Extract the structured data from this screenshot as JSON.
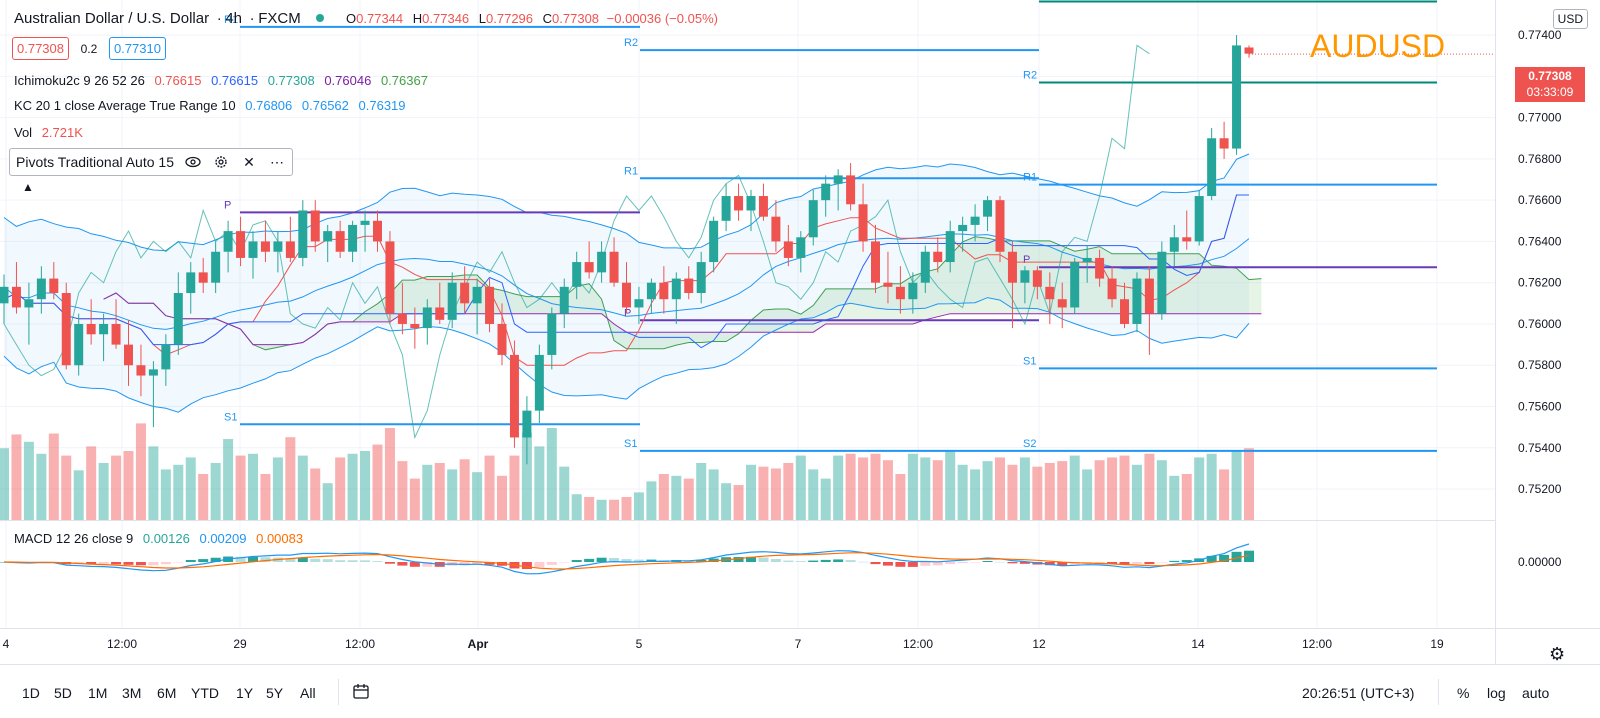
{
  "header": {
    "symbol_title": "Australian Dollar / U.S. Dollar",
    "interval": "4h",
    "exchange": "FXCM",
    "o_label": "O",
    "o_val": "0.77344",
    "h_label": "H",
    "h_val": "0.77346",
    "l_label": "L",
    "l_val": "0.77296",
    "c_label": "C",
    "c_val": "0.77308",
    "change": "−0.00036 (−0.05%)",
    "sell_price": "0.77308",
    "spread": "0.2",
    "buy_price": "0.77310"
  },
  "indicators": {
    "ichimoku_label": "Ichimoku2c 9 26 52 26",
    "ichimoku_values": [
      "0.76615",
      "0.76615",
      "0.77308",
      "0.76046",
      "0.76367"
    ],
    "kc_label": "KC 20 1 close Average True Range 10",
    "kc_values": [
      "0.76806",
      "0.76562",
      "0.76319"
    ],
    "vol_label": "Vol",
    "vol_value": "2.721K",
    "pivots_label": "Pivots Traditional Auto 15",
    "macd_label": "MACD 12 26 close 9",
    "macd_values": [
      "0.00126",
      "0.00209",
      "0.00083"
    ]
  },
  "watermark": "AUDUSD",
  "price_axis": {
    "currency": "USD",
    "last_price": "0.77308",
    "countdown": "03:33:09"
  },
  "timeframes": [
    "1D",
    "5D",
    "1M",
    "3M",
    "6M",
    "YTD",
    "1Y",
    "5Y",
    "All"
  ],
  "footer": {
    "clock": "20:26:51 (UTC+3)",
    "percent": "%",
    "log": "log",
    "auto": "auto"
  },
  "colors": {
    "up": "#26a69a",
    "down": "#ef5350",
    "pivot_line": "#2196f3",
    "pivot_p": "#673ab7",
    "watermark": "#ff9800"
  },
  "chart_data": {
    "type": "candlestick",
    "title": "Australian Dollar / U.S. Dollar, 4h, FXCM",
    "price_ticks": [
      "0.77400",
      "0.77200",
      "0.77000",
      "0.76800",
      "0.76600",
      "0.76400",
      "0.76200",
      "0.76000",
      "0.75800",
      "0.75600",
      "0.75400",
      "0.75200"
    ],
    "time_ticks": [
      {
        "label": "4",
        "x": 6
      },
      {
        "label": "12:00",
        "x": 122
      },
      {
        "label": "29",
        "x": 240
      },
      {
        "label": "12:00",
        "x": 360
      },
      {
        "label": "Apr",
        "x": 478
      },
      {
        "label": "5",
        "x": 639
      },
      {
        "label": "7",
        "x": 798
      },
      {
        "label": "12:00",
        "x": 918
      },
      {
        "label": "12",
        "x": 1039
      },
      {
        "label": "14",
        "x": 1198
      },
      {
        "label": "12:00",
        "x": 1317
      },
      {
        "label": "19",
        "x": 1437
      }
    ],
    "ylim": [
      0.7505,
      0.7757
    ],
    "candles": [
      [
        0.761,
        0.7624,
        0.76,
        0.7618
      ],
      [
        0.7618,
        0.763,
        0.7605,
        0.7608
      ],
      [
        0.7608,
        0.762,
        0.759,
        0.7612
      ],
      [
        0.7612,
        0.7628,
        0.7605,
        0.7622
      ],
      [
        0.7622,
        0.763,
        0.7612,
        0.7615
      ],
      [
        0.7615,
        0.762,
        0.7578,
        0.758
      ],
      [
        0.758,
        0.7605,
        0.7575,
        0.76
      ],
      [
        0.76,
        0.7612,
        0.759,
        0.7595
      ],
      [
        0.7595,
        0.7605,
        0.7582,
        0.76
      ],
      [
        0.76,
        0.7612,
        0.7588,
        0.759
      ],
      [
        0.759,
        0.7602,
        0.757,
        0.758
      ],
      [
        0.758,
        0.759,
        0.7565,
        0.7575
      ],
      [
        0.7575,
        0.7582,
        0.755,
        0.7578
      ],
      [
        0.7578,
        0.7595,
        0.757,
        0.759
      ],
      [
        0.759,
        0.7625,
        0.7585,
        0.7615
      ],
      [
        0.7615,
        0.763,
        0.7605,
        0.7625
      ],
      [
        0.7625,
        0.7632,
        0.7615,
        0.762
      ],
      [
        0.762,
        0.764,
        0.7615,
        0.7635
      ],
      [
        0.7635,
        0.765,
        0.7625,
        0.7645
      ],
      [
        0.7645,
        0.7652,
        0.7628,
        0.7632
      ],
      [
        0.7632,
        0.7645,
        0.7622,
        0.764
      ],
      [
        0.764,
        0.765,
        0.763,
        0.7635
      ],
      [
        0.7635,
        0.7645,
        0.7625,
        0.764
      ],
      [
        0.764,
        0.7652,
        0.763,
        0.7632
      ],
      [
        0.7632,
        0.766,
        0.7628,
        0.7655
      ],
      [
        0.7655,
        0.766,
        0.7635,
        0.764
      ],
      [
        0.764,
        0.7648,
        0.763,
        0.7645
      ],
      [
        0.7645,
        0.765,
        0.7632,
        0.7635
      ],
      [
        0.7635,
        0.765,
        0.763,
        0.7648
      ],
      [
        0.7648,
        0.7655,
        0.7635,
        0.765
      ],
      [
        0.765,
        0.7655,
        0.7635,
        0.764
      ],
      [
        0.764,
        0.7645,
        0.76,
        0.7605
      ],
      [
        0.7605,
        0.762,
        0.7595,
        0.76
      ],
      [
        0.76,
        0.7608,
        0.7588,
        0.7598
      ],
      [
        0.7598,
        0.7612,
        0.759,
        0.7608
      ],
      [
        0.7608,
        0.762,
        0.76,
        0.7602
      ],
      [
        0.7602,
        0.7625,
        0.7598,
        0.762
      ],
      [
        0.762,
        0.7628,
        0.7605,
        0.761
      ],
      [
        0.761,
        0.7622,
        0.7595,
        0.7618
      ],
      [
        0.7618,
        0.7622,
        0.7596,
        0.76
      ],
      [
        0.76,
        0.761,
        0.758,
        0.7585
      ],
      [
        0.7585,
        0.7592,
        0.754,
        0.7545
      ],
      [
        0.7545,
        0.7565,
        0.7532,
        0.7558
      ],
      [
        0.7558,
        0.759,
        0.7552,
        0.7585
      ],
      [
        0.7585,
        0.7608,
        0.7578,
        0.7605
      ],
      [
        0.7605,
        0.7622,
        0.7598,
        0.7618
      ],
      [
        0.7618,
        0.7635,
        0.7612,
        0.763
      ],
      [
        0.763,
        0.764,
        0.7622,
        0.7625
      ],
      [
        0.7625,
        0.764,
        0.762,
        0.7635
      ],
      [
        0.7635,
        0.7642,
        0.7618,
        0.762
      ],
      [
        0.762,
        0.763,
        0.7605,
        0.7608
      ],
      [
        0.7608,
        0.7618,
        0.76,
        0.7612
      ],
      [
        0.7612,
        0.7622,
        0.7605,
        0.762
      ],
      [
        0.762,
        0.7628,
        0.7605,
        0.7612
      ],
      [
        0.7612,
        0.7625,
        0.76,
        0.7622
      ],
      [
        0.7622,
        0.7628,
        0.7612,
        0.7615
      ],
      [
        0.7615,
        0.7635,
        0.761,
        0.763
      ],
      [
        0.763,
        0.7652,
        0.7625,
        0.765
      ],
      [
        0.765,
        0.7668,
        0.7645,
        0.7662
      ],
      [
        0.7662,
        0.7668,
        0.765,
        0.7655
      ],
      [
        0.7655,
        0.7665,
        0.7645,
        0.7662
      ],
      [
        0.7662,
        0.7668,
        0.765,
        0.7652
      ],
      [
        0.7652,
        0.766,
        0.7635,
        0.764
      ],
      [
        0.764,
        0.7648,
        0.7628,
        0.7632
      ],
      [
        0.7632,
        0.7645,
        0.7625,
        0.7642
      ],
      [
        0.7642,
        0.7665,
        0.7638,
        0.766
      ],
      [
        0.766,
        0.7672,
        0.7652,
        0.7668
      ],
      [
        0.7668,
        0.7675,
        0.7655,
        0.7672
      ],
      [
        0.7672,
        0.7678,
        0.7655,
        0.7658
      ],
      [
        0.7658,
        0.7668,
        0.7635,
        0.764
      ],
      [
        0.764,
        0.7648,
        0.7615,
        0.762
      ],
      [
        0.762,
        0.7635,
        0.761,
        0.7618
      ],
      [
        0.7618,
        0.7628,
        0.7605,
        0.7612
      ],
      [
        0.7612,
        0.7625,
        0.7605,
        0.762
      ],
      [
        0.762,
        0.7638,
        0.7615,
        0.7635
      ],
      [
        0.7635,
        0.7642,
        0.7625,
        0.763
      ],
      [
        0.763,
        0.765,
        0.7625,
        0.7645
      ],
      [
        0.7645,
        0.7652,
        0.7635,
        0.7648
      ],
      [
        0.7648,
        0.7658,
        0.764,
        0.7652
      ],
      [
        0.7652,
        0.7662,
        0.7645,
        0.766
      ],
      [
        0.766,
        0.7662,
        0.763,
        0.7635
      ],
      [
        0.7635,
        0.764,
        0.7598,
        0.762
      ],
      [
        0.762,
        0.7628,
        0.761,
        0.7626
      ],
      [
        0.7626,
        0.7628,
        0.7612,
        0.7618
      ],
      [
        0.7618,
        0.7625,
        0.76,
        0.7612
      ],
      [
        0.7612,
        0.762,
        0.7598,
        0.7608
      ],
      [
        0.7608,
        0.7632,
        0.7605,
        0.763
      ],
      [
        0.763,
        0.7638,
        0.762,
        0.7632
      ],
      [
        0.7632,
        0.7636,
        0.7618,
        0.7622
      ],
      [
        0.7622,
        0.7628,
        0.7608,
        0.7612
      ],
      [
        0.7612,
        0.762,
        0.7598,
        0.76
      ],
      [
        0.76,
        0.7625,
        0.7596,
        0.7622
      ],
      [
        0.7622,
        0.7628,
        0.7585,
        0.7605
      ],
      [
        0.7605,
        0.764,
        0.7602,
        0.7635
      ],
      [
        0.7635,
        0.7648,
        0.7628,
        0.7642
      ],
      [
        0.7642,
        0.7655,
        0.7636,
        0.764
      ],
      [
        0.764,
        0.7665,
        0.7638,
        0.7662
      ],
      [
        0.7662,
        0.7695,
        0.766,
        0.769
      ],
      [
        0.769,
        0.7698,
        0.768,
        0.7685
      ],
      [
        0.7685,
        0.774,
        0.7682,
        0.7735
      ],
      [
        0.7734,
        0.7735,
        0.7729,
        0.7731
      ]
    ],
    "volumes": [
      0.78,
      0.93,
      0.85,
      0.72,
      0.94,
      0.7,
      0.54,
      0.8,
      0.62,
      0.7,
      0.75,
      1.05,
      0.8,
      0.55,
      0.6,
      0.68,
      0.5,
      0.62,
      0.88,
      0.7,
      0.72,
      0.5,
      0.68,
      0.9,
      0.7,
      0.56,
      0.4,
      0.68,
      0.72,
      0.75,
      0.82,
      1.0,
      0.64,
      0.45,
      0.6,
      0.62,
      0.55,
      0.66,
      0.52,
      0.7,
      0.48,
      0.7,
      0.95,
      0.8,
      1.0,
      0.58,
      0.28,
      0.25,
      0.22,
      0.22,
      0.25,
      0.3,
      0.42,
      0.5,
      0.48,
      0.45,
      0.62,
      0.55,
      0.4,
      0.38,
      0.6,
      0.58,
      0.56,
      0.62,
      0.7,
      0.55,
      0.45,
      0.7,
      0.72,
      0.68,
      0.72,
      0.65,
      0.5,
      0.72,
      0.68,
      0.65,
      0.75,
      0.6,
      0.55,
      0.64,
      0.68,
      0.6,
      0.68,
      0.58,
      0.62,
      0.64,
      0.7,
      0.55,
      0.65,
      0.68,
      0.7,
      0.6,
      0.72,
      0.65,
      0.48,
      0.5,
      0.68,
      0.72,
      0.55,
      0.75,
      0.78,
      0.08
    ],
    "pivots": [
      {
        "label": "R1",
        "price": 0.7744,
        "x0": 240,
        "x1": 640
      },
      {
        "label": "S1",
        "price": 0.75514,
        "x0": 240,
        "x1": 640
      },
      {
        "label": "P",
        "price": 0.76541,
        "x0": 240,
        "x1": 640
      },
      {
        "label": "R2",
        "price": 0.77327,
        "x0": 640,
        "x1": 1039
      },
      {
        "label": "R1",
        "price": 0.76706,
        "x0": 640,
        "x1": 1039
      },
      {
        "label": "P",
        "price": 0.76018,
        "x0": 640,
        "x1": 1039
      },
      {
        "label": "S1",
        "price": 0.75385,
        "x0": 640,
        "x1": 1039
      },
      {
        "label": "R3",
        "price": 0.77563,
        "x0": 1039,
        "x1": 1437
      },
      {
        "label": "R2",
        "price": 0.7717,
        "x0": 1039,
        "x1": 1437
      },
      {
        "label": "R1",
        "price": 0.76675,
        "x0": 1039,
        "x1": 1437
      },
      {
        "label": "P",
        "price": 0.76275,
        "x0": 1039,
        "x1": 1437
      },
      {
        "label": "S1",
        "price": 0.75785,
        "x0": 1039,
        "x1": 1437
      },
      {
        "label": "S2",
        "price": 0.75385,
        "x0": 1039,
        "x1": 1437
      }
    ],
    "macd_tick": "0.00000"
  }
}
